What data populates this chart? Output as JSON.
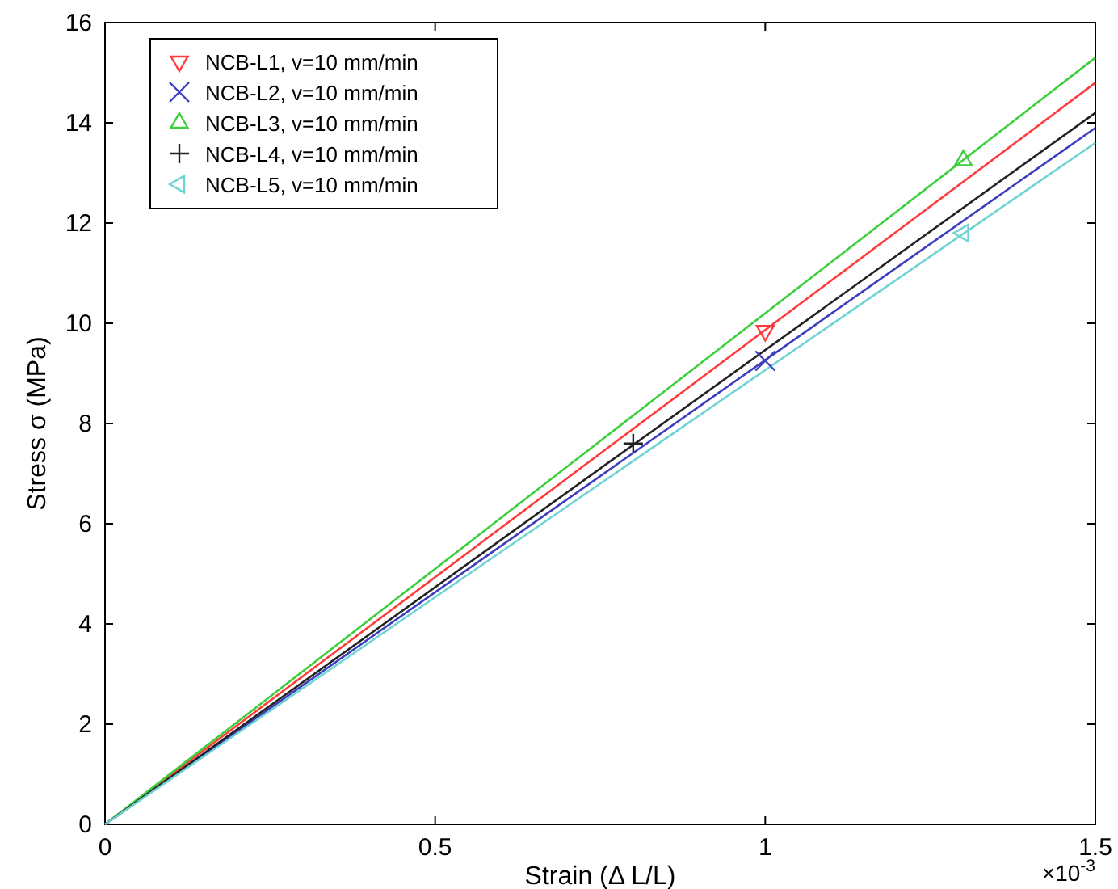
{
  "chart_data": {
    "type": "line",
    "xlabel": "Strain (Δ L/L)",
    "ylabel": "Stress σ (MPa)",
    "annotations": [
      "×10$^{-3}$"
    ],
    "xlim": [
      0,
      1.5
    ],
    "xticks": [
      0,
      0.5,
      1,
      1.5
    ],
    "ylim": [
      0,
      16
    ],
    "yticks": [
      0,
      2,
      4,
      6,
      8,
      10,
      12,
      14,
      16
    ],
    "grid": false,
    "legend": "top left",
    "series": [
      {
        "color": "#ff3b3b",
        "x": [
          0,
          1.5
        ],
        "values": [
          0,
          14.8
        ]
      },
      {
        "color": "#3d3dbf",
        "x": [
          0,
          1.5
        ],
        "values": [
          0,
          13.9
        ]
      },
      {
        "color": "#3ccf3c",
        "x": [
          0,
          1.5
        ],
        "values": [
          0,
          15.3
        ]
      },
      {
        "color": "#222222",
        "x": [
          0,
          1.5
        ],
        "values": [
          0,
          14.2
        ]
      },
      {
        "color": "#6fd3d3",
        "x": [
          0,
          1.5
        ],
        "values": [
          0,
          13.6
        ]
      },
      {
        "type": "scatter",
        "name": "NCB-L1, v=10 mm/min",
        "color": "#ff3b3b",
        "marker": "triangle-down",
        "x": [
          1.0
        ],
        "values": [
          9.85
        ]
      },
      {
        "type": "scatter",
        "name": "NCB-L2, v=10 mm/min",
        "color": "#3d3dbf",
        "marker": "x",
        "x": [
          1.0
        ],
        "values": [
          9.25
        ]
      },
      {
        "type": "scatter",
        "name": "NCB-L3, v=10 mm/min",
        "color": "#3ccf3c",
        "marker": "triangle",
        "x": [
          1.3
        ],
        "values": [
          13.25
        ]
      },
      {
        "type": "scatter",
        "name": "NCB-L4, v=10 mm/min",
        "color": "#222222",
        "marker": "plus",
        "x": [
          0.8
        ],
        "values": [
          7.6
        ]
      },
      {
        "type": "scatter",
        "name": "NCB-L5, v=10 mm/min",
        "color": "#6fd3d3",
        "marker": "triangle-left",
        "x": [
          1.3
        ],
        "values": [
          11.8
        ]
      }
    ]
  }
}
